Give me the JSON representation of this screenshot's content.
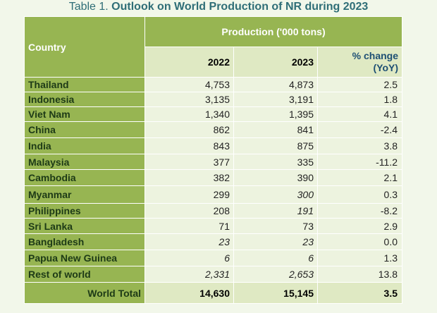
{
  "caption": {
    "prefix": "Table 1. ",
    "title": "Outlook on World Production of NR during 2023"
  },
  "header": {
    "country": "Country",
    "group": "Production ('000 tons)",
    "year1": "2022",
    "year2": "2023",
    "pct_line1": "% change",
    "pct_line2": "(YoY)"
  },
  "rows": [
    {
      "country": "Thailand",
      "v2022": "4,753",
      "v2023": "4,873",
      "pct": "2.5"
    },
    {
      "country": "Indonesia",
      "v2022": "3,135",
      "v2023": "3,191",
      "pct": "1.8"
    },
    {
      "country": "Viet Nam",
      "v2022": "1,340",
      "v2023": "1,395",
      "pct": "4.1"
    },
    {
      "country": "China",
      "v2022": "862",
      "v2023": "841",
      "pct": "-2.4"
    },
    {
      "country": "India",
      "v2022": "843",
      "v2023": "875",
      "pct": "3.8"
    },
    {
      "country": "Malaysia",
      "v2022": "377",
      "v2023": "335",
      "pct": "-11.2"
    },
    {
      "country": "Cambodia",
      "v2022": "382",
      "v2023": "390",
      "pct": "2.1"
    },
    {
      "country": "Myanmar",
      "v2022": "299",
      "v2023": "300",
      "pct": "0.3"
    },
    {
      "country": "Philippines",
      "v2022": "208",
      "v2023": "191",
      "pct": "-8.2"
    },
    {
      "country": "Sri Lanka",
      "v2022": "71",
      "v2023": "73",
      "pct": "2.9"
    },
    {
      "country": "Bangladesh",
      "v2022": "23",
      "v2023": "23",
      "pct": "0.0"
    },
    {
      "country": "Papua New Guinea",
      "v2022": "6",
      "v2023": "6",
      "pct": "1.3"
    },
    {
      "country": "Rest of world",
      "v2022": "2,331",
      "v2023": "2,653",
      "pct": "13.8"
    }
  ],
  "total": {
    "label": "World Total",
    "v2022": "14,630",
    "v2023": "15,145",
    "pct": "3.5"
  }
}
